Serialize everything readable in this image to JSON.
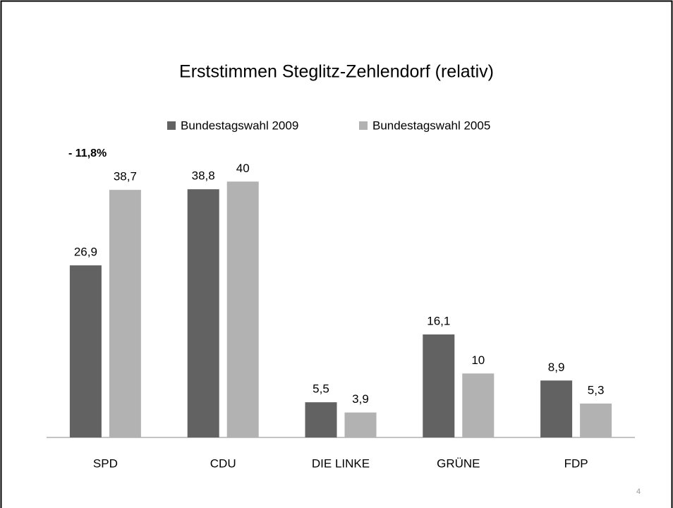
{
  "chart_data": {
    "type": "bar",
    "title": "Erststimmen Steglitz-Zehlendorf (relativ)",
    "annotation": "- 11,8%",
    "page_number": "4",
    "categories": [
      "SPD",
      "CDU",
      "DIE LINKE",
      "GRÜNE",
      "FDP"
    ],
    "series": [
      {
        "name": "Bundestagswahl 2009",
        "color": "#626262",
        "values": [
          26.9,
          38.8,
          5.5,
          16.1,
          8.9
        ],
        "value_labels": [
          "26,9",
          "38,8",
          "5,5",
          "16,1",
          "8,9"
        ]
      },
      {
        "name": "Bundestagswahl 2005",
        "color": "#b2b2b2",
        "values": [
          38.7,
          40,
          3.9,
          10,
          5.3
        ],
        "value_labels": [
          "38,7",
          "40",
          "3,9",
          "10",
          "5,3"
        ]
      }
    ],
    "ylim": [
      0,
      45
    ],
    "legend": "top"
  }
}
